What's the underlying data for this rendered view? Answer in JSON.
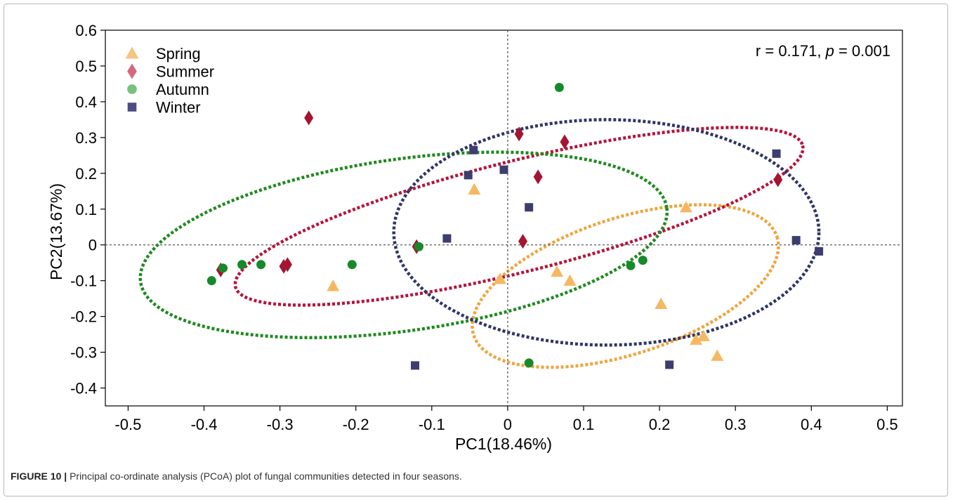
{
  "caption": {
    "label": "FIGURE 10 |",
    "text": "Principal co-ordinate analysis (PCoA) plot of fungal communities detected in four seasons."
  },
  "chart_data": {
    "type": "scatter",
    "xlabel": "PC1(18.46%)",
    "ylabel": "PC2(13.67%)",
    "xlim": [
      -0.53,
      0.52
    ],
    "ylim": [
      -0.45,
      0.6
    ],
    "x_ticks": [
      -0.5,
      -0.4,
      -0.3,
      -0.2,
      -0.1,
      0,
      0.1,
      0.2,
      0.3,
      0.4,
      0.5
    ],
    "x_tick_labels": [
      "-0.5",
      "-0.4",
      "-0.3",
      "-0.2",
      "-0.1",
      "0",
      "0.1",
      "0.2",
      "0.3",
      "0.4",
      "0.5"
    ],
    "y_ticks": [
      0.6,
      0.5,
      0.4,
      0.3,
      0.2,
      0.1,
      0,
      -0.1,
      -0.2,
      -0.3,
      -0.4
    ],
    "y_tick_labels": [
      "0.6",
      "0.5",
      "0.4",
      "0.3",
      "0.2",
      "0.1",
      "0",
      "-0.1",
      "-0.2",
      "-0.3",
      "-0.4"
    ],
    "annotation": {
      "prefix": "r = 0.171, ",
      "p_symbol": "p",
      "suffix": " = 0.001"
    },
    "legend_position": "top-left",
    "grid": false,
    "reference_lines": {
      "x": 0,
      "y": 0
    },
    "series": [
      {
        "name": "Spring",
        "marker": "triangle",
        "color": "#f5b862",
        "ellipse_color": "#f0a43c",
        "points": [
          [
            -0.044,
            0.155
          ],
          [
            0.235,
            0.105
          ],
          [
            0.065,
            -0.075
          ],
          [
            -0.01,
            -0.095
          ],
          [
            0.082,
            -0.1
          ],
          [
            -0.23,
            -0.115
          ],
          [
            0.202,
            -0.165
          ],
          [
            0.248,
            -0.265
          ],
          [
            0.258,
            -0.255
          ],
          [
            0.276,
            -0.31
          ]
        ],
        "ellipse": {
          "cx": 0.155,
          "cy": -0.115,
          "rx": 0.21,
          "ry": 0.19,
          "angle": 18
        }
      },
      {
        "name": "Summer",
        "marker": "diamond",
        "color": "#a31530",
        "ellipse_color": "#b5143a",
        "points": [
          [
            -0.262,
            0.355
          ],
          [
            0.015,
            0.31
          ],
          [
            0.075,
            0.288
          ],
          [
            0.04,
            0.19
          ],
          [
            0.356,
            0.182
          ],
          [
            0.02,
            0.01
          ],
          [
            -0.12,
            -0.005
          ],
          [
            -0.29,
            -0.055
          ],
          [
            -0.295,
            -0.06
          ],
          [
            -0.378,
            -0.07
          ]
        ],
        "ellipse": {
          "cx": 0.015,
          "cy": 0.08,
          "rx": 0.385,
          "ry": 0.155,
          "angle": 14
        }
      },
      {
        "name": "Autumn",
        "marker": "circle",
        "color": "#17892a",
        "ellipse_color": "#1e8a1e",
        "points": [
          [
            0.068,
            0.44
          ],
          [
            -0.39,
            -0.1
          ],
          [
            -0.375,
            -0.065
          ],
          [
            -0.35,
            -0.055
          ],
          [
            -0.325,
            -0.055
          ],
          [
            -0.205,
            -0.055
          ],
          [
            -0.117,
            -0.005
          ],
          [
            0.162,
            -0.058
          ],
          [
            0.178,
            -0.043
          ],
          [
            0.028,
            -0.33
          ]
        ],
        "ellipse": {
          "cx": -0.137,
          "cy": -0.0,
          "rx": 0.35,
          "ry": 0.24,
          "angle": 8
        }
      },
      {
        "name": "Winter",
        "marker": "square",
        "color": "#3d3d70",
        "ellipse_color": "#2f3566",
        "points": [
          [
            -0.045,
            0.265
          ],
          [
            -0.052,
            0.195
          ],
          [
            -0.005,
            0.21
          ],
          [
            0.028,
            0.105
          ],
          [
            0.354,
            0.255
          ],
          [
            -0.08,
            0.018
          ],
          [
            0.38,
            0.013
          ],
          [
            0.41,
            -0.018
          ],
          [
            -0.122,
            -0.337
          ],
          [
            0.213,
            -0.335
          ]
        ],
        "ellipse": {
          "cx": 0.13,
          "cy": 0.035,
          "rx": 0.28,
          "ry": 0.315,
          "angle": 0
        }
      }
    ]
  }
}
